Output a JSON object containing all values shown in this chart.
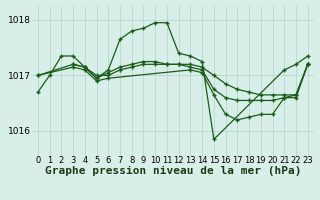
{
  "background_color": "#d8eee8",
  "grid_color": "#b8d8d0",
  "line_color": "#1a5c1a",
  "title": "Graphe pression niveau de la mer (hPa)",
  "xlim": [
    -0.5,
    23.5
  ],
  "ylim": [
    1015.55,
    1018.25
  ],
  "yticks": [
    1016,
    1017,
    1018
  ],
  "xticks": [
    0,
    1,
    2,
    3,
    4,
    5,
    6,
    7,
    8,
    9,
    10,
    11,
    12,
    13,
    14,
    15,
    16,
    17,
    18,
    19,
    20,
    21,
    22,
    23
  ],
  "series": [
    {
      "x": [
        0,
        1,
        2,
        3,
        4,
        5,
        6,
        7,
        8,
        9,
        10,
        11,
        12,
        13,
        14,
        15,
        21,
        22,
        23
      ],
      "y": [
        1016.7,
        1017.0,
        1017.35,
        1017.35,
        1017.15,
        1016.95,
        1017.1,
        1017.65,
        1017.8,
        1017.85,
        1017.95,
        1017.95,
        1017.4,
        1017.35,
        1017.25,
        1015.85,
        1017.1,
        1017.2,
        1017.35
      ]
    },
    {
      "x": [
        0,
        3,
        4,
        5,
        6,
        7,
        8,
        9,
        10,
        11,
        12,
        13,
        14,
        15,
        16,
        17,
        18,
        19,
        20,
        21,
        22,
        23
      ],
      "y": [
        1017.0,
        1017.2,
        1017.15,
        1017.0,
        1017.0,
        1017.1,
        1017.15,
        1017.2,
        1017.2,
        1017.2,
        1017.2,
        1017.2,
        1017.15,
        1017.0,
        1016.85,
        1016.75,
        1016.7,
        1016.65,
        1016.65,
        1016.65,
        1016.65,
        1017.2
      ]
    },
    {
      "x": [
        3,
        4,
        5,
        6,
        7,
        8,
        9,
        10,
        11,
        12,
        13,
        14,
        15,
        16,
        17,
        18,
        19,
        20,
        21,
        22,
        23
      ],
      "y": [
        1017.2,
        1017.15,
        1016.95,
        1017.05,
        1017.15,
        1017.2,
        1017.25,
        1017.25,
        1017.2,
        1017.2,
        1017.15,
        1017.1,
        1016.75,
        1016.6,
        1016.55,
        1016.55,
        1016.55,
        1016.55,
        1016.6,
        1016.65,
        1017.2
      ]
    },
    {
      "x": [
        0,
        3,
        4,
        5,
        6,
        13,
        14,
        15,
        16,
        17,
        18,
        19,
        20,
        21,
        22,
        23
      ],
      "y": [
        1017.0,
        1017.15,
        1017.1,
        1016.9,
        1016.95,
        1017.1,
        1017.05,
        1016.65,
        1016.3,
        1016.2,
        1016.25,
        1016.3,
        1016.3,
        1016.6,
        1016.6,
        1017.2
      ]
    }
  ],
  "title_fontsize": 8,
  "tick_fontsize": 6,
  "marker_size": 3.5,
  "linewidth": 0.9
}
